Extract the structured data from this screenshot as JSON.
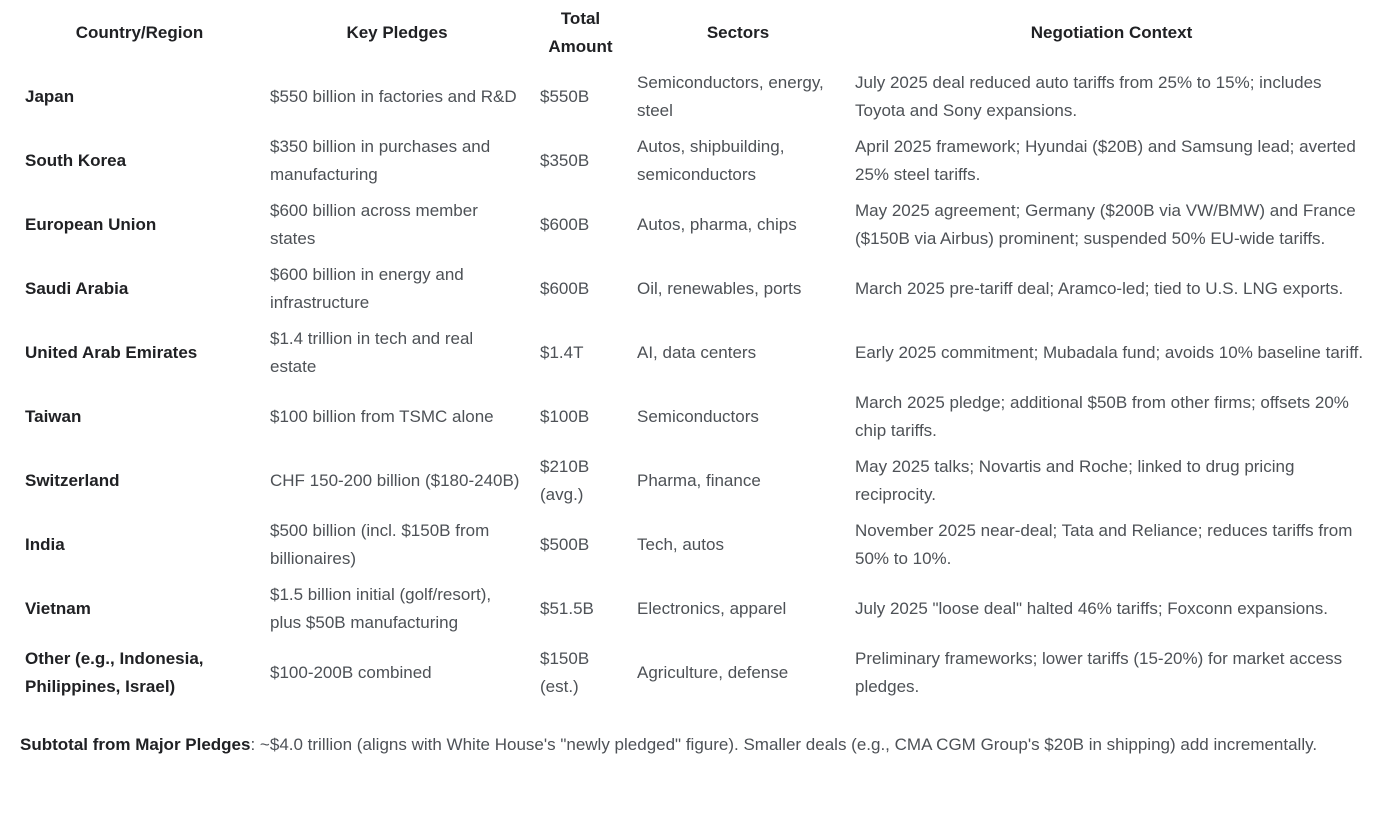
{
  "page": {
    "background_color": "#ffffff",
    "body_text_color": "#4d5156",
    "heading_text_color": "#202124"
  },
  "table": {
    "headers": [
      "Country/Region",
      "Key Pledges",
      "Total Amount",
      "Sectors",
      "Negotiation Context"
    ],
    "rows": [
      {
        "country": "Japan",
        "pledges": "$550 billion in factories and R&D",
        "amount": "$550B",
        "sectors": "Semiconductors, energy, steel",
        "context": "July 2025 deal reduced auto tariffs from 25% to 15%; includes Toyota and Sony expansions."
      },
      {
        "country": "South Korea",
        "pledges": "$350 billion in purchases and manufacturing",
        "amount": "$350B",
        "sectors": "Autos, shipbuilding, semiconductors",
        "context": "April 2025 framework; Hyundai ($20B) and Samsung lead; averted 25% steel tariffs."
      },
      {
        "country": "European Union",
        "pledges": "$600 billion across member states",
        "amount": "$600B",
        "sectors": "Autos, pharma, chips",
        "context": "May 2025 agreement; Germany ($200B via VW/BMW) and France ($150B via Airbus) prominent; suspended 50% EU-wide tariffs."
      },
      {
        "country": "Saudi Arabia",
        "pledges": "$600 billion in energy and infrastructure",
        "amount": "$600B",
        "sectors": "Oil, renewables, ports",
        "context": "March 2025 pre-tariff deal; Aramco-led; tied to U.S. LNG exports."
      },
      {
        "country": "United Arab Emirates",
        "pledges": "$1.4 trillion in tech and real estate",
        "amount": "$1.4T",
        "sectors": "AI, data centers",
        "context": "Early 2025 commitment; Mubadala fund; avoids 10% baseline tariff."
      },
      {
        "country": "Taiwan",
        "pledges": "$100 billion from TSMC alone",
        "amount": "$100B",
        "sectors": "Semiconductors",
        "context": "March 2025 pledge; additional $50B from other firms; offsets 20% chip tariffs."
      },
      {
        "country": "Switzerland",
        "pledges": "CHF 150-200 billion ($180-240B)",
        "amount": "$210B (avg.)",
        "sectors": "Pharma, finance",
        "context": "May 2025 talks; Novartis and Roche; linked to drug pricing reciprocity."
      },
      {
        "country": "India",
        "pledges": "$500 billion (incl. $150B from billionaires)",
        "amount": "$500B",
        "sectors": "Tech, autos",
        "context": "November 2025 near-deal; Tata and Reliance; reduces tariffs from 50% to 10%."
      },
      {
        "country": "Vietnam",
        "pledges": "$1.5 billion initial (golf/resort), plus $50B manufacturing",
        "amount": "$51.5B",
        "sectors": "Electronics, apparel",
        "context": "July 2025 \"loose deal\" halted 46% tariffs; Foxconn expansions."
      },
      {
        "country": "Other (e.g., Indonesia, Philippines, Israel)",
        "pledges": "$100-200B combined",
        "amount": "$150B (est.)",
        "sectors": "Agriculture, defense",
        "context": "Preliminary frameworks; lower tariffs (15-20%) for market access pledges."
      }
    ]
  },
  "footnote": {
    "bold_label": "Subtotal from Major Pledges",
    "text": ": ~$4.0 trillion (aligns with White House's \"newly pledged\" figure). Smaller deals (e.g., CMA CGM Group's $20B in shipping) add incrementally."
  }
}
